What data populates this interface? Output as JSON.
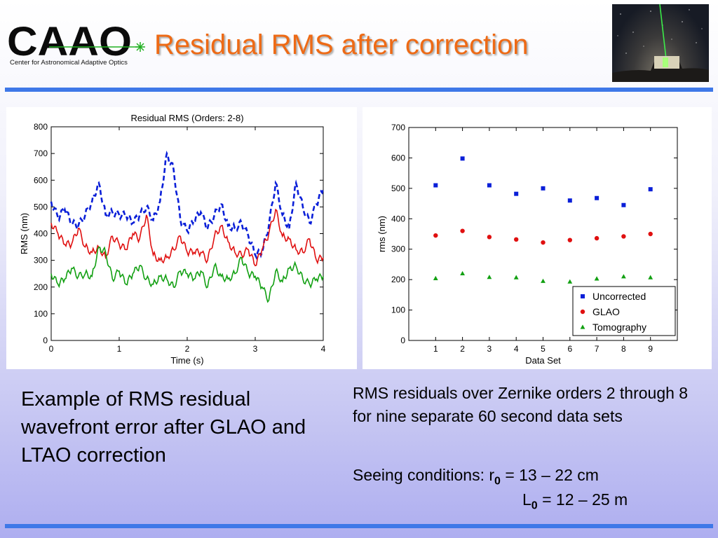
{
  "slide": {
    "title": "Residual RMS after correction",
    "logo_text": "CAAO",
    "logo_subtitle": "Center for Astronomical Adaptive Optics",
    "caption_left": "Example of RMS residual wavefront error after GLAO and LTAO correction",
    "caption_right": "RMS residuals over Zernike orders 2 through 8 for nine separate 60 second data sets",
    "seeing_label": "Seeing conditions: r",
    "r0_sub": "0",
    "r0_value": "= 13 – 22 cm",
    "L0_label": "L",
    "L0_sub": "0",
    "L0_value": "= 12 – 25 m"
  },
  "colors": {
    "title": "#ee6a15",
    "uncorrected": "#0a1fd8",
    "glao": "#e01010",
    "tomography": "#12a012",
    "rule": "#3e78e8"
  },
  "chart_data": [
    {
      "type": "line",
      "title": "Residual RMS (Orders: 2-8)",
      "xlabel": "Time (s)",
      "ylabel": "RMS (nm)",
      "xlim": [
        0,
        4
      ],
      "ylim": [
        0,
        800
      ],
      "xticks": [
        0,
        1,
        2,
        3,
        4
      ],
      "yticks": [
        0,
        100,
        200,
        300,
        400,
        500,
        600,
        700,
        800
      ],
      "series": [
        {
          "color": "#0a1fd8",
          "style": "dashed",
          "x": [
            0,
            0.1,
            0.2,
            0.3,
            0.4,
            0.5,
            0.6,
            0.7,
            0.8,
            0.9,
            1.0,
            1.1,
            1.2,
            1.3,
            1.4,
            1.5,
            1.6,
            1.7,
            1.8,
            1.9,
            2.0,
            2.1,
            2.2,
            2.3,
            2.4,
            2.5,
            2.6,
            2.7,
            2.8,
            2.9,
            3.0,
            3.1,
            3.2,
            3.3,
            3.4,
            3.5,
            3.6,
            3.7,
            3.8,
            3.9,
            4.0
          ],
          "y": [
            520,
            460,
            490,
            440,
            430,
            470,
            520,
            590,
            470,
            480,
            470,
            470,
            440,
            470,
            500,
            450,
            520,
            700,
            640,
            450,
            410,
            450,
            480,
            420,
            470,
            510,
            430,
            420,
            440,
            390,
            320,
            330,
            430,
            590,
            470,
            420,
            590,
            500,
            440,
            510,
            570
          ]
        },
        {
          "color": "#e01010",
          "style": "solid",
          "x": [
            0,
            0.1,
            0.2,
            0.3,
            0.4,
            0.5,
            0.6,
            0.7,
            0.8,
            0.9,
            1.0,
            1.1,
            1.2,
            1.3,
            1.4,
            1.5,
            1.6,
            1.7,
            1.8,
            1.9,
            2.0,
            2.1,
            2.2,
            2.3,
            2.4,
            2.5,
            2.6,
            2.7,
            2.8,
            2.9,
            3.0,
            3.1,
            3.2,
            3.3,
            3.4,
            3.5,
            3.6,
            3.7,
            3.8,
            3.9,
            4.0
          ],
          "y": [
            440,
            400,
            360,
            360,
            420,
            350,
            330,
            350,
            310,
            390,
            360,
            340,
            400,
            380,
            470,
            320,
            300,
            310,
            340,
            390,
            330,
            330,
            330,
            300,
            390,
            430,
            370,
            330,
            320,
            340,
            280,
            340,
            400,
            490,
            390,
            380,
            340,
            330,
            380,
            300,
            310
          ]
        },
        {
          "color": "#12a012",
          "style": "solid",
          "x": [
            0,
            0.1,
            0.2,
            0.3,
            0.4,
            0.5,
            0.6,
            0.7,
            0.8,
            0.9,
            1.0,
            1.1,
            1.2,
            1.3,
            1.4,
            1.5,
            1.6,
            1.7,
            1.8,
            1.9,
            2.0,
            2.1,
            2.2,
            2.3,
            2.4,
            2.5,
            2.6,
            2.7,
            2.8,
            2.9,
            3.0,
            3.1,
            3.2,
            3.3,
            3.4,
            3.5,
            3.6,
            3.7,
            3.8,
            3.9,
            4.0
          ],
          "y": [
            250,
            210,
            230,
            270,
            240,
            250,
            240,
            350,
            330,
            230,
            260,
            210,
            250,
            280,
            230,
            210,
            240,
            230,
            200,
            260,
            250,
            230,
            260,
            200,
            280,
            240,
            230,
            250,
            310,
            250,
            240,
            200,
            150,
            260,
            220,
            270,
            280,
            230,
            210,
            230,
            240
          ]
        }
      ]
    },
    {
      "type": "scatter",
      "xlabel": "Data Set",
      "ylabel": "rms (nm)",
      "xlim": [
        0,
        10
      ],
      "ylim": [
        0,
        700
      ],
      "xticks": [
        1,
        2,
        3,
        4,
        5,
        6,
        7,
        8,
        9
      ],
      "yticks": [
        0,
        100,
        200,
        300,
        400,
        500,
        600,
        700
      ],
      "legend_position": "bottom-right",
      "series": [
        {
          "name": "Uncorrected",
          "color": "#0a1fd8",
          "marker": "square",
          "x": [
            1,
            2,
            3,
            4,
            5,
            6,
            7,
            8,
            9
          ],
          "y": [
            510,
            598,
            510,
            482,
            500,
            460,
            468,
            445,
            497
          ]
        },
        {
          "name": "GLAO",
          "color": "#e01010",
          "marker": "circle",
          "x": [
            1,
            2,
            3,
            4,
            5,
            6,
            7,
            8,
            9
          ],
          "y": [
            345,
            360,
            340,
            332,
            322,
            330,
            336,
            342,
            350
          ]
        },
        {
          "name": "Tomography",
          "color": "#12a012",
          "marker": "triangle",
          "x": [
            1,
            2,
            3,
            4,
            5,
            6,
            7,
            8,
            9
          ],
          "y": [
            204,
            220,
            208,
            207,
            195,
            193,
            203,
            210,
            207
          ]
        }
      ]
    }
  ]
}
